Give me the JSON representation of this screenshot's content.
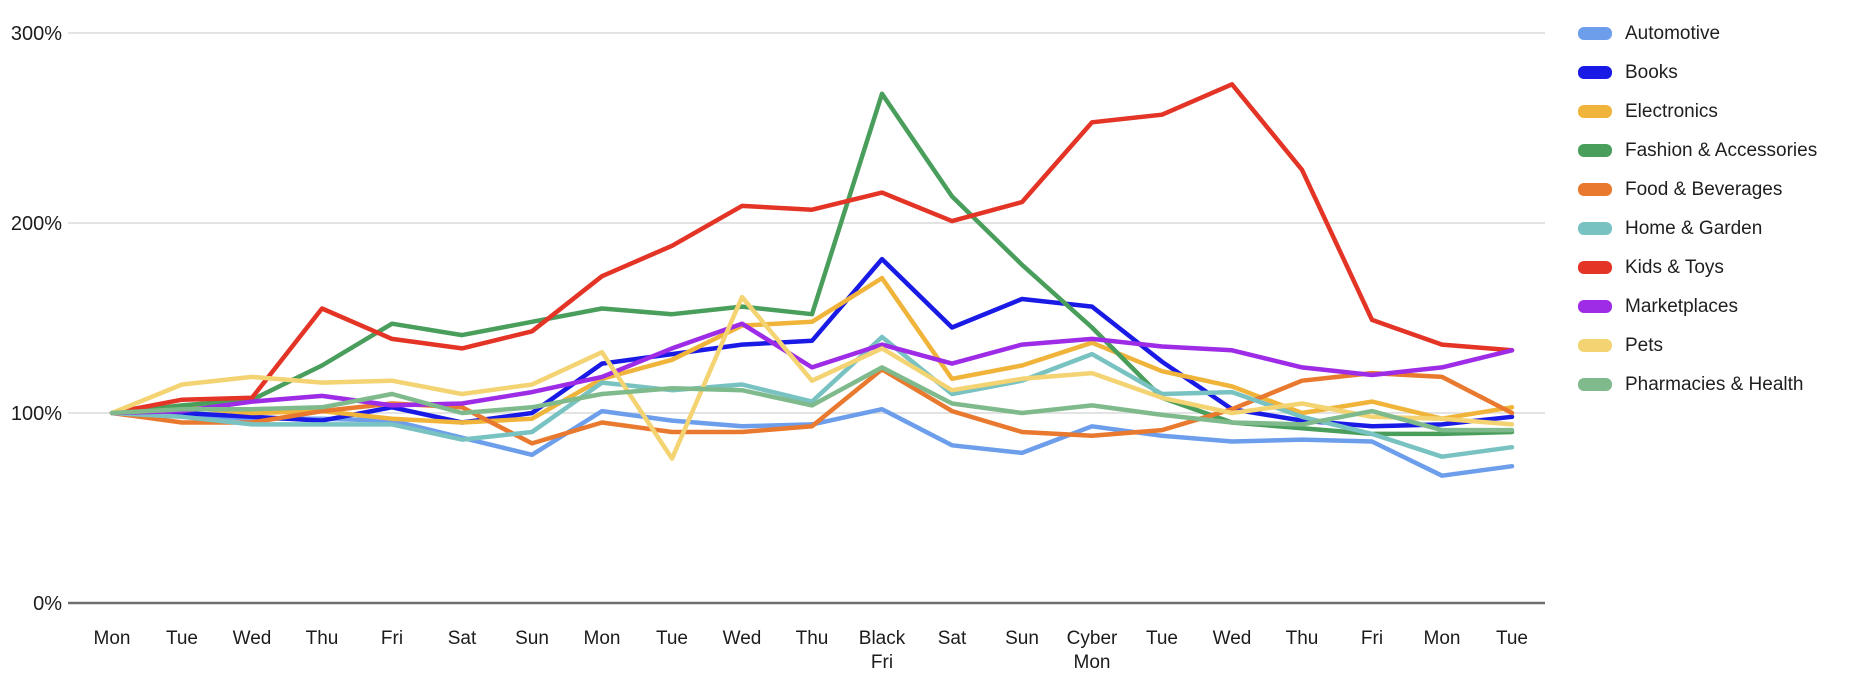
{
  "chart_data": {
    "type": "line",
    "title": "",
    "xlabel": "",
    "ylabel": "",
    "ylim": [
      0,
      300
    ],
    "grid": "horizontal",
    "legend_position": "right",
    "yticks": [
      {
        "label": "0%",
        "value": 0
      },
      {
        "label": "100%",
        "value": 100
      },
      {
        "label": "200%",
        "value": 200
      },
      {
        "label": "300%",
        "value": 300
      }
    ],
    "categories": [
      "Mon",
      "Tue",
      "Wed",
      "Thu",
      "Fri",
      "Sat",
      "Sun",
      "Mon",
      "Tue",
      "Wed",
      "Thu",
      "Black Fri",
      "Sat",
      "Sun",
      "Cyber Mon",
      "Tue",
      "Wed",
      "Thu",
      "Fri",
      "Mon",
      "Tue"
    ],
    "series": [
      {
        "name": "Automotive",
        "color": "#6d9eeb",
        "values": [
          100,
          99,
          97,
          97,
          96,
          87,
          78,
          101,
          96,
          93,
          94,
          102,
          83,
          79,
          93,
          88,
          85,
          86,
          85,
          67,
          72
        ]
      },
      {
        "name": "Books",
        "color": "#1a1ae6",
        "values": [
          100,
          100,
          98,
          96,
          103,
          95,
          100,
          126,
          131,
          136,
          138,
          181,
          145,
          160,
          156,
          127,
          102,
          96,
          93,
          94,
          98
        ]
      },
      {
        "name": "Electronics",
        "color": "#f0b43a",
        "values": [
          100,
          103,
          100,
          101,
          97,
          95,
          97,
          118,
          128,
          146,
          148,
          171,
          118,
          125,
          137,
          122,
          114,
          100,
          106,
          97,
          103
        ]
      },
      {
        "name": "Fashion & Accessories",
        "color": "#4a9e5c",
        "values": [
          100,
          104,
          107,
          125,
          147,
          141,
          148,
          155,
          152,
          156,
          152,
          268,
          214,
          178,
          145,
          108,
          95,
          92,
          89,
          89,
          90
        ]
      },
      {
        "name": "Food & Beverages",
        "color": "#e8792e",
        "values": [
          100,
          95,
          95,
          101,
          105,
          103,
          84,
          95,
          90,
          90,
          93,
          123,
          101,
          90,
          88,
          91,
          102,
          117,
          121,
          119,
          100
        ]
      },
      {
        "name": "Home & Garden",
        "color": "#79c2c2",
        "values": [
          100,
          98,
          94,
          94,
          94,
          86,
          90,
          116,
          112,
          115,
          106,
          140,
          110,
          117,
          131,
          110,
          111,
          98,
          89,
          77,
          82
        ]
      },
      {
        "name": "Kids & Toys",
        "color": "#e33426",
        "values": [
          100,
          107,
          108,
          155,
          139,
          134,
          143,
          172,
          188,
          209,
          207,
          216,
          201,
          211,
          253,
          257,
          273,
          228,
          149,
          136,
          133
        ]
      },
      {
        "name": "Marketplaces",
        "color": "#9e2ce6",
        "values": [
          100,
          101,
          106,
          109,
          104,
          105,
          111,
          119,
          134,
          147,
          124,
          136,
          126,
          136,
          139,
          135,
          133,
          124,
          120,
          124,
          133
        ]
      },
      {
        "name": "Pets",
        "color": "#f3d372",
        "values": [
          100,
          115,
          119,
          116,
          117,
          110,
          115,
          132,
          76,
          161,
          117,
          134,
          112,
          118,
          121,
          108,
          100,
          105,
          98,
          97,
          94
        ]
      },
      {
        "name": "Pharmacies & Health",
        "color": "#7fba8c",
        "values": [
          100,
          102,
          102,
          103,
          110,
          100,
          103,
          110,
          113,
          112,
          104,
          124,
          105,
          100,
          104,
          99,
          95,
          94,
          101,
          91,
          91
        ]
      }
    ]
  }
}
